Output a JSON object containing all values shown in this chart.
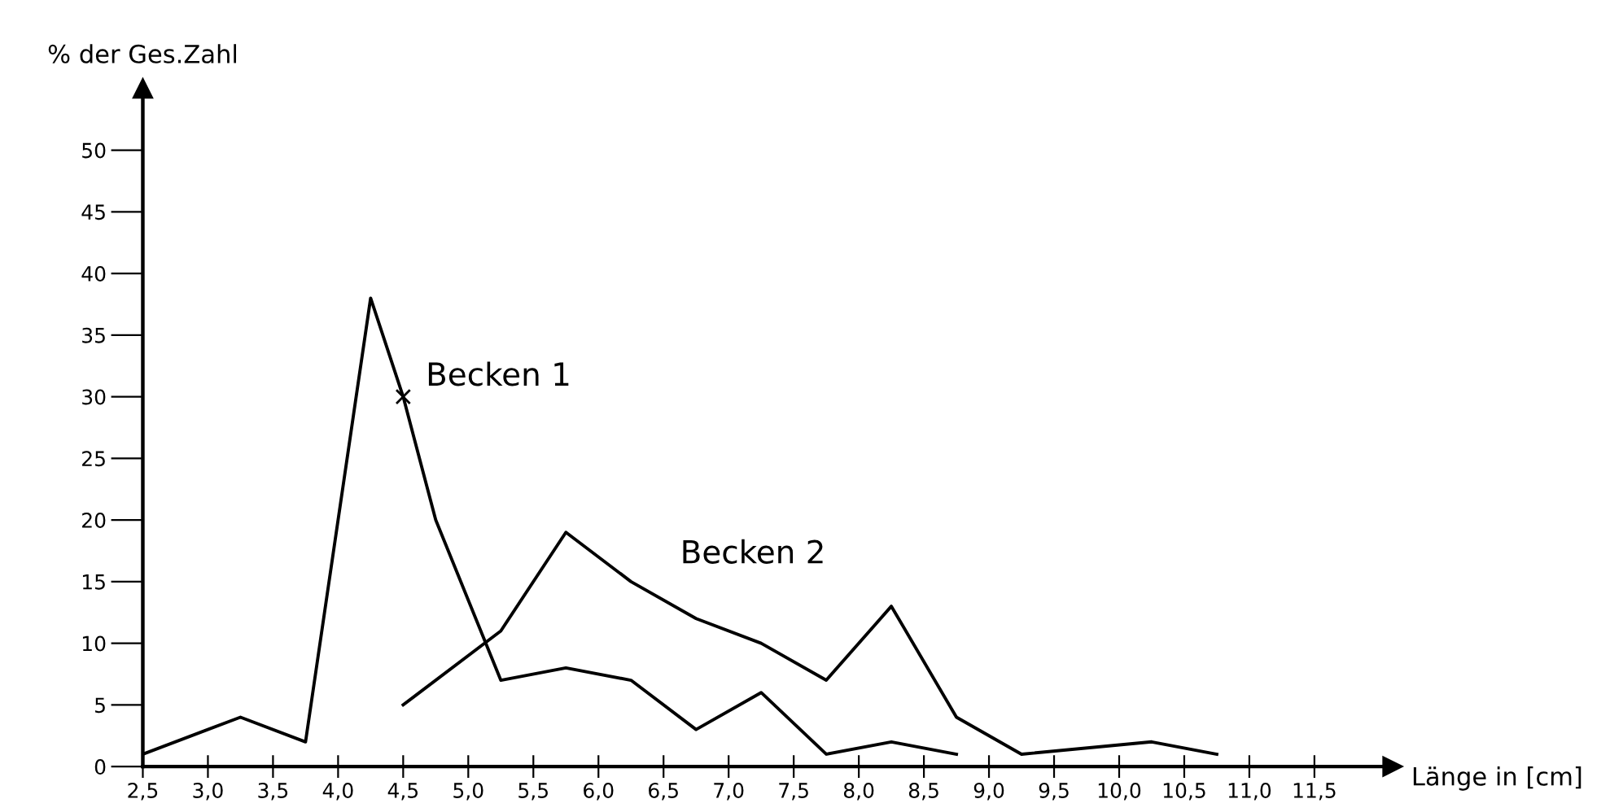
{
  "chart_data": {
    "type": "line",
    "xlabel": "Länge in [cm]",
    "ylabel": "% der Ges.Zahl",
    "series": [
      {
        "color": "#000000",
        "x": [
          2.5,
          3.25,
          3.75,
          4.25,
          4.5,
          4.75,
          5.25,
          5.75,
          6.25,
          6.75,
          7.25,
          7.75,
          8.25,
          8.75
        ],
        "values": [
          1,
          4,
          2,
          38,
          30,
          20,
          7,
          8,
          7,
          3,
          6,
          1,
          2,
          1
        ]
      },
      {
        "color": "#000000",
        "x": [
          4.5,
          5.25,
          5.75,
          6.25,
          6.75,
          7.25,
          7.75,
          8.25,
          8.75,
          9.25,
          10.25,
          10.75
        ],
        "values": [
          5,
          11,
          19,
          15,
          12,
          10,
          7,
          13,
          4,
          1,
          2,
          1
        ]
      }
    ],
    "annotations": [
      {
        "text": "Becken 1",
        "x": 4.5,
        "y": 30
      },
      "Becken 2"
    ],
    "xlim": [
      2.5,
      12.1
    ],
    "ylim": [
      0,
      55
    ],
    "xticks": [
      {
        "value": 2.5,
        "label": "2,5"
      },
      {
        "value": 3.0,
        "label": "3,0"
      },
      {
        "value": 3.5,
        "label": "3,5"
      },
      {
        "value": 4.0,
        "label": "4,0"
      },
      {
        "value": 4.5,
        "label": "4,5"
      },
      {
        "value": 5.0,
        "label": "5,0"
      },
      {
        "value": 5.5,
        "label": "5,5"
      },
      {
        "value": 6.0,
        "label": "6,0"
      },
      {
        "value": 6.5,
        "label": "6,5"
      },
      {
        "value": 7.0,
        "label": "7,0"
      },
      {
        "value": 7.5,
        "label": "7,5"
      },
      {
        "value": 8.0,
        "label": "8,0"
      },
      {
        "value": 8.5,
        "label": "8,5"
      },
      {
        "value": 9.0,
        "label": "9,0"
      },
      {
        "value": 9.5,
        "label": "9,5"
      },
      {
        "value": 10.0,
        "label": "10,0"
      },
      {
        "value": 10.5,
        "label": "10,5"
      },
      {
        "value": 11.0,
        "label": "11,0"
      },
      {
        "value": 11.5,
        "label": "11,5"
      }
    ],
    "yticks": [
      0,
      5,
      10,
      15,
      20,
      25,
      30,
      35,
      40,
      45,
      50
    ],
    "grid": false,
    "legend": false,
    "marker": "none",
    "line_style": "solid"
  }
}
